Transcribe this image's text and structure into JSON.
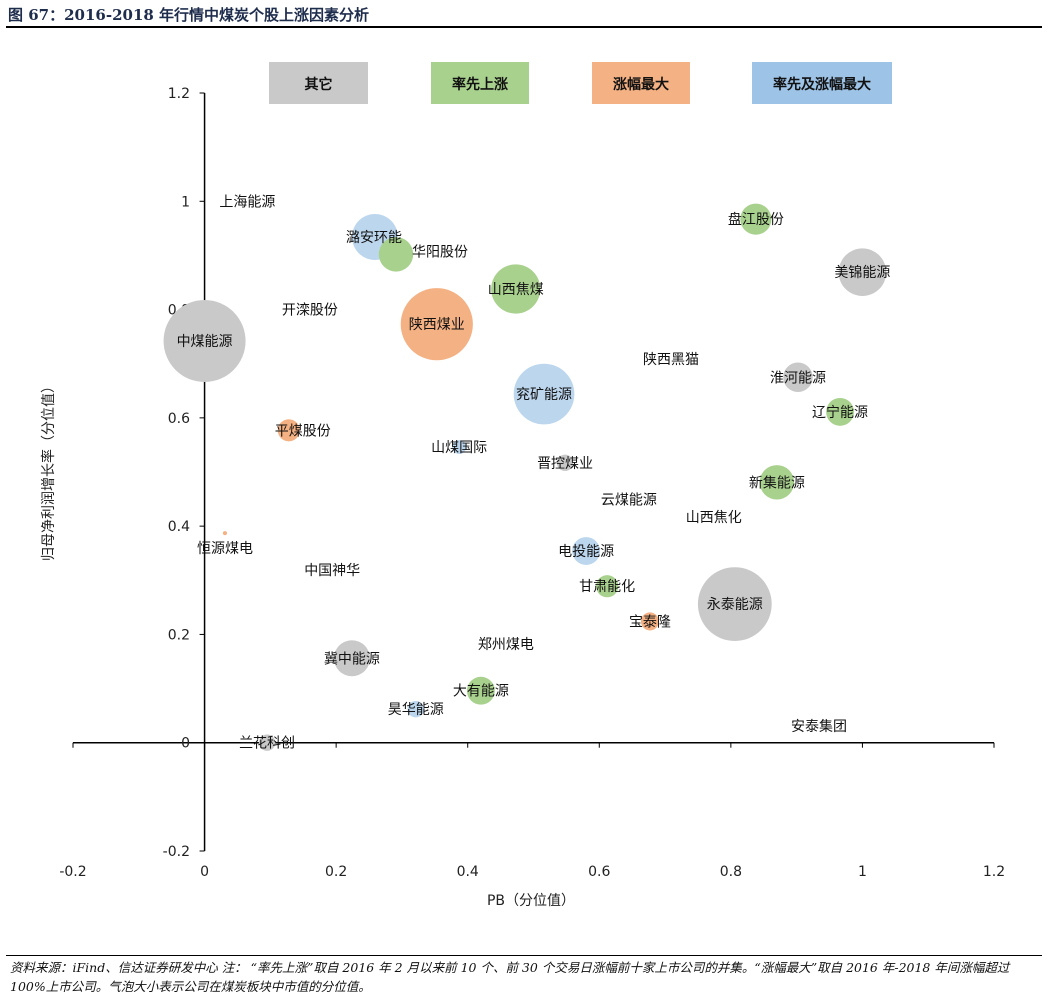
{
  "title": "图 67：2016-2018 年行情中煤炭个股上涨因素分析",
  "note": "资料来源：iFind、信达证券研发中心 注：  “率先上涨”取自 2016 年 2 月以来前 10 个、前 30 个交易日涨幅前十家上市公司的并集。“涨幅最大”取自 2016 年-2018 年间涨幅超过 100%上市公司。气泡大小表示公司在煤炭板块中市值的分位值。",
  "chart_data": {
    "type": "scatter",
    "subtype": "bubble",
    "xlabel": "PB（分位值）",
    "ylabel": "归母净利润增长率（分位值）",
    "xlim": [
      -0.2,
      1.2
    ],
    "ylim": [
      -0.2,
      1.2
    ],
    "xticks": [
      "-0.2",
      "0",
      "0.2",
      "0.4",
      "0.6",
      "0.8",
      "1",
      "1.2"
    ],
    "yticks": [
      "-0.2",
      "0",
      "0.2",
      "0.4",
      "0.6",
      "0.8",
      "1",
      "1.2"
    ],
    "legend_position": "top",
    "legend": [
      {
        "key": "other",
        "label": "其它",
        "color": "#c9c9c9"
      },
      {
        "key": "early",
        "label": "率先上涨",
        "color": "#a9d18e"
      },
      {
        "key": "max",
        "label": "涨幅最大",
        "color": "#f4b183"
      },
      {
        "key": "both",
        "label": "率先及涨幅最大",
        "color": "#9dc3e6"
      }
    ],
    "bubble_colors": {
      "other": "#c9c9c9",
      "early": "#a9d18e",
      "max": "#f4b183",
      "both": "#bcd6ee"
    },
    "points": [
      {
        "name": "上海能源",
        "x": 0.065,
        "y": 1.0,
        "size": 0,
        "group": "other"
      },
      {
        "name": "潞安环能",
        "x": 0.259,
        "y": 0.934,
        "size": 0.56,
        "group": "both"
      },
      {
        "name": "华阳股份",
        "x": 0.291,
        "y": 0.902,
        "size": 0.42,
        "group": "early"
      },
      {
        "name": "开滦股份",
        "x": 0.16,
        "y": 0.8,
        "size": 0,
        "group": "other"
      },
      {
        "name": "陕西煤业",
        "x": 0.353,
        "y": 0.773,
        "size": 0.88,
        "group": "max"
      },
      {
        "name": "山西焦煤",
        "x": 0.473,
        "y": 0.838,
        "size": 0.6,
        "group": "early"
      },
      {
        "name": "中煤能源",
        "x": 0.0,
        "y": 0.742,
        "size": 1.0,
        "group": "other"
      },
      {
        "name": "盘江股份",
        "x": 0.838,
        "y": 0.967,
        "size": 0.38,
        "group": "early"
      },
      {
        "name": "美锦能源",
        "x": 1.0,
        "y": 0.869,
        "size": 0.58,
        "group": "other"
      },
      {
        "name": "陕西黑猫",
        "x": 0.709,
        "y": 0.709,
        "size": 0,
        "group": "other"
      },
      {
        "name": "淮河能源",
        "x": 0.902,
        "y": 0.675,
        "size": 0.36,
        "group": "other"
      },
      {
        "name": "辽宁能源",
        "x": 0.966,
        "y": 0.611,
        "size": 0.34,
        "group": "early"
      },
      {
        "name": "兖矿能源",
        "x": 0.516,
        "y": 0.644,
        "size": 0.74,
        "group": "both"
      },
      {
        "name": "平煤股份",
        "x": 0.128,
        "y": 0.577,
        "size": 0.27,
        "group": "max"
      },
      {
        "name": "山煤国际",
        "x": 0.387,
        "y": 0.546,
        "size": 0.17,
        "group": "both"
      },
      {
        "name": "晋控煤业",
        "x": 0.548,
        "y": 0.517,
        "size": 0.2,
        "group": "other"
      },
      {
        "name": "新集能源",
        "x": 0.87,
        "y": 0.481,
        "size": 0.42,
        "group": "early"
      },
      {
        "name": "云煤能源",
        "x": 0.645,
        "y": 0.449,
        "size": 0,
        "group": "other"
      },
      {
        "name": "山西焦化",
        "x": 0.774,
        "y": 0.417,
        "size": 0,
        "group": "other"
      },
      {
        "name": "恒源煤电",
        "x": 0.031,
        "y": 0.387,
        "size": 0.05,
        "group": "max"
      },
      {
        "name": "电投能源",
        "x": 0.58,
        "y": 0.354,
        "size": 0.34,
        "group": "both"
      },
      {
        "name": "中国神华",
        "x": 0.194,
        "y": 0.319,
        "size": 0,
        "group": "other"
      },
      {
        "name": "甘肃能化",
        "x": 0.612,
        "y": 0.289,
        "size": 0.27,
        "group": "early"
      },
      {
        "name": "永泰能源",
        "x": 0.806,
        "y": 0.256,
        "size": 0.9,
        "group": "other"
      },
      {
        "name": "宝泰隆",
        "x": 0.677,
        "y": 0.224,
        "size": 0.22,
        "group": "max"
      },
      {
        "name": "郑州煤电",
        "x": 0.458,
        "y": 0.182,
        "size": 0,
        "group": "other"
      },
      {
        "name": "冀中能源",
        "x": 0.224,
        "y": 0.156,
        "size": 0.44,
        "group": "other"
      },
      {
        "name": "大有能源",
        "x": 0.42,
        "y": 0.096,
        "size": 0.34,
        "group": "early"
      },
      {
        "name": "昊华能源",
        "x": 0.321,
        "y": 0.062,
        "size": 0.2,
        "group": "both"
      },
      {
        "name": "安泰集团",
        "x": 0.934,
        "y": 0.031,
        "size": 0,
        "group": "other"
      },
      {
        "name": "兰花科创",
        "x": 0.095,
        "y": 0.0,
        "size": 0.2,
        "group": "other"
      }
    ]
  }
}
